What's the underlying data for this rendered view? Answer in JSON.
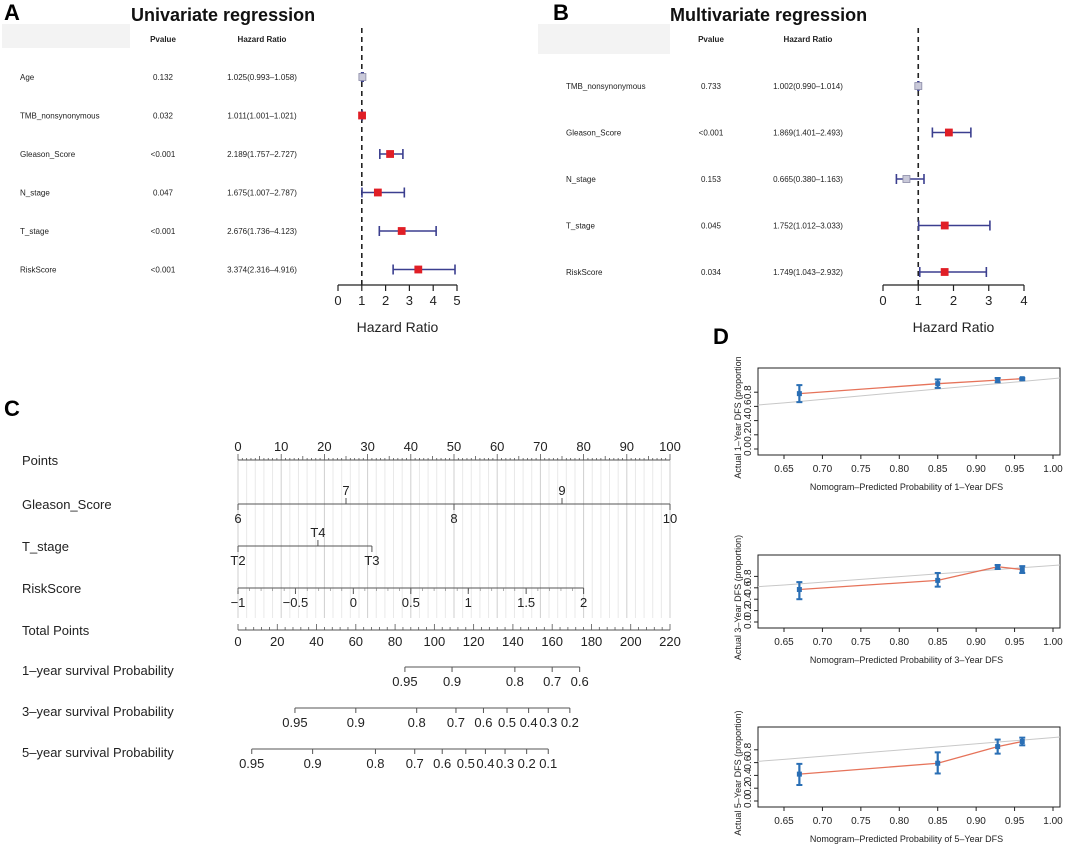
{
  "panels": {
    "A": {
      "letter": "A",
      "title": "Univariate regression"
    },
    "B": {
      "letter": "B",
      "title": "Multivariate regression"
    },
    "C": {
      "letter": "C"
    },
    "D": {
      "letter": "D"
    }
  },
  "chart_data": [
    {
      "id": "forest_univariate",
      "type": "forest",
      "title": "Univariate regression",
      "col_pvalue": "Pvalue",
      "col_hr": "Hazard Ratio",
      "xlabel": "Hazard Ratio",
      "xlim": [
        0,
        5
      ],
      "xticks": [
        "0",
        "1",
        "2",
        "3",
        "4",
        "5"
      ],
      "rows": [
        {
          "label": "Age",
          "pvalue": "0.132",
          "hr_text": "1.025(0.993–1.058)",
          "hr": 1.025,
          "lo": 0.993,
          "hi": 1.058,
          "sig": false
        },
        {
          "label": "TMB_nonsynonymous",
          "pvalue": "0.032",
          "hr_text": "1.011(1.001–1.021)",
          "hr": 1.011,
          "lo": 1.001,
          "hi": 1.021,
          "sig": true
        },
        {
          "label": "Gleason_Score",
          "pvalue": "<0.001",
          "hr_text": "2.189(1.757–2.727)",
          "hr": 2.189,
          "lo": 1.757,
          "hi": 2.727,
          "sig": true
        },
        {
          "label": "N_stage",
          "pvalue": "0.047",
          "hr_text": "1.675(1.007–2.787)",
          "hr": 1.675,
          "lo": 1.007,
          "hi": 2.787,
          "sig": true
        },
        {
          "label": "T_stage",
          "pvalue": "<0.001",
          "hr_text": "2.676(1.736–4.123)",
          "hr": 2.676,
          "lo": 1.736,
          "hi": 4.123,
          "sig": true
        },
        {
          "label": "RiskScore",
          "pvalue": "<0.001",
          "hr_text": "3.374(2.316–4.916)",
          "hr": 3.374,
          "lo": 2.316,
          "hi": 4.916,
          "sig": true
        }
      ]
    },
    {
      "id": "forest_multivariate",
      "type": "forest",
      "title": "Multivariate regression",
      "col_pvalue": "Pvalue",
      "col_hr": "Hazard Ratio",
      "xlabel": "Hazard Ratio",
      "xlim": [
        0,
        4
      ],
      "xticks": [
        "0",
        "1",
        "2",
        "3",
        "4"
      ],
      "rows": [
        {
          "label": "TMB_nonsynonymous",
          "pvalue": "0.733",
          "hr_text": "1.002(0.990–1.014)",
          "hr": 1.002,
          "lo": 0.99,
          "hi": 1.014,
          "sig": false
        },
        {
          "label": "Gleason_Score",
          "pvalue": "<0.001",
          "hr_text": "1.869(1.401–2.493)",
          "hr": 1.869,
          "lo": 1.401,
          "hi": 2.493,
          "sig": true
        },
        {
          "label": "N_stage",
          "pvalue": "0.153",
          "hr_text": "0.665(0.380–1.163)",
          "hr": 0.665,
          "lo": 0.38,
          "hi": 1.163,
          "sig": false
        },
        {
          "label": "T_stage",
          "pvalue": "0.045",
          "hr_text": "1.752(1.012–3.033)",
          "hr": 1.752,
          "lo": 1.012,
          "hi": 3.033,
          "sig": true
        },
        {
          "label": "RiskScore",
          "pvalue": "0.034",
          "hr_text": "1.749(1.043–2.932)",
          "hr": 1.749,
          "lo": 1.043,
          "hi": 2.932,
          "sig": true
        }
      ]
    },
    {
      "id": "nomogram",
      "type": "nomogram",
      "points_scale": {
        "min": 0,
        "max": 100
      },
      "rows": [
        {
          "label": "Points",
          "kind": "axis",
          "range": [
            0,
            100
          ],
          "ticks": [
            {
              "p": 0,
              "t": "0"
            },
            {
              "p": 10,
              "t": "10"
            },
            {
              "p": 20,
              "t": "20"
            },
            {
              "p": 30,
              "t": "30"
            },
            {
              "p": 40,
              "t": "40"
            },
            {
              "p": 50,
              "t": "50"
            },
            {
              "p": 60,
              "t": "60"
            },
            {
              "p": 70,
              "t": "70"
            },
            {
              "p": 80,
              "t": "80"
            },
            {
              "p": 90,
              "t": "90"
            },
            {
              "p": 100,
              "t": "100"
            }
          ]
        },
        {
          "label": "Gleason_Score",
          "kind": "scale",
          "range": [
            0,
            100
          ],
          "ticks": [
            {
              "p": 0,
              "t": "6",
              "pos": "below"
            },
            {
              "p": 25,
              "t": "7",
              "pos": "above"
            },
            {
              "p": 50,
              "t": "8",
              "pos": "below"
            },
            {
              "p": 75,
              "t": "9",
              "pos": "above"
            },
            {
              "p": 100,
              "t": "10",
              "pos": "below"
            }
          ]
        },
        {
          "label": "T_stage",
          "kind": "scale",
          "range": [
            0,
            31
          ],
          "ticks": [
            {
              "p": 0,
              "t": "T2",
              "pos": "below"
            },
            {
              "p": 18.5,
              "t": "T4",
              "pos": "above"
            },
            {
              "p": 31,
              "t": "T3",
              "pos": "below"
            }
          ]
        },
        {
          "label": "RiskScore",
          "kind": "scale",
          "range": [
            0,
            80
          ],
          "ticks": [
            {
              "p": 0,
              "t": "−1",
              "pos": "below"
            },
            {
              "p": 13.3,
              "t": "−0.5",
              "pos": "below"
            },
            {
              "p": 26.7,
              "t": "0",
              "pos": "below"
            },
            {
              "p": 40,
              "t": "0.5",
              "pos": "below"
            },
            {
              "p": 53.3,
              "t": "1",
              "pos": "below"
            },
            {
              "p": 66.7,
              "t": "1.5",
              "pos": "below"
            },
            {
              "p": 80,
              "t": "2",
              "pos": "below"
            }
          ]
        },
        {
          "label": "Total Points",
          "kind": "total",
          "range": [
            0,
            220
          ],
          "ticks": [
            {
              "p": 0,
              "t": "0"
            },
            {
              "p": 20,
              "t": "20"
            },
            {
              "p": 40,
              "t": "40"
            },
            {
              "p": 60,
              "t": "60"
            },
            {
              "p": 80,
              "t": "80"
            },
            {
              "p": 100,
              "t": "100"
            },
            {
              "p": 120,
              "t": "120"
            },
            {
              "p": 140,
              "t": "140"
            },
            {
              "p": 160,
              "t": "160"
            },
            {
              "p": 180,
              "t": "180"
            },
            {
              "p": 200,
              "t": "200"
            },
            {
              "p": 220,
              "t": "220"
            }
          ]
        },
        {
          "label": "1–year survival Probability",
          "kind": "prob",
          "ticks": [
            {
              "p": 85,
              "t": "0.95"
            },
            {
              "p": 109,
              "t": "0.9"
            },
            {
              "p": 141,
              "t": "0.8"
            },
            {
              "p": 160,
              "t": "0.7"
            },
            {
              "p": 174,
              "t": "0.6"
            }
          ]
        },
        {
          "label": "3–year survival Probability",
          "kind": "prob",
          "ticks": [
            {
              "p": 29,
              "t": "0.95"
            },
            {
              "p": 60,
              "t": "0.9"
            },
            {
              "p": 91,
              "t": "0.8"
            },
            {
              "p": 111,
              "t": "0.7"
            },
            {
              "p": 125,
              "t": "0.6"
            },
            {
              "p": 137,
              "t": "0.5"
            },
            {
              "p": 148,
              "t": "0.4"
            },
            {
              "p": 158,
              "t": "0.3"
            },
            {
              "p": 169,
              "t": "0.2"
            }
          ]
        },
        {
          "label": "5–year survival Probability",
          "kind": "prob",
          "ticks": [
            {
              "p": 7,
              "t": "0.95"
            },
            {
              "p": 38,
              "t": "0.9"
            },
            {
              "p": 70,
              "t": "0.8"
            },
            {
              "p": 90,
              "t": "0.7"
            },
            {
              "p": 104,
              "t": "0.6"
            },
            {
              "p": 116,
              "t": "0.5"
            },
            {
              "p": 126,
              "t": "0.4"
            },
            {
              "p": 136,
              "t": "0.3"
            },
            {
              "p": 147,
              "t": "0.2"
            },
            {
              "p": 158,
              "t": "0.1"
            }
          ]
        }
      ]
    },
    {
      "id": "calibration",
      "type": "line",
      "xlim": [
        0.65,
        1.0
      ],
      "ylim": [
        0,
        1
      ],
      "xticks": [
        "0.65",
        "0.70",
        "0.75",
        "0.80",
        "0.85",
        "0.90",
        "0.95",
        "1.00"
      ],
      "yticks": [
        "0.0",
        "0.2",
        "0.4",
        "0.6",
        "0.8"
      ],
      "plots": [
        {
          "ylabel": "Actual 1–Year DFS (proportion",
          "xlabel": "Nomogram–Predicted Probability of 1–Year DFS",
          "points": [
            {
              "x": 0.67,
              "y": 0.78,
              "lo": 0.66,
              "hi": 0.9
            },
            {
              "x": 0.85,
              "y": 0.92,
              "lo": 0.86,
              "hi": 0.98
            },
            {
              "x": 0.928,
              "y": 0.97,
              "lo": 0.94,
              "hi": 1.0
            },
            {
              "x": 0.96,
              "y": 0.99,
              "lo": 0.97,
              "hi": 1.0
            }
          ]
        },
        {
          "ylabel": "Actual 3–Year DFS (proportion)",
          "xlabel": "Nomogram–Predicted Probability of 3–Year DFS",
          "points": [
            {
              "x": 0.67,
              "y": 0.57,
              "lo": 0.4,
              "hi": 0.7
            },
            {
              "x": 0.85,
              "y": 0.73,
              "lo": 0.62,
              "hi": 0.86
            },
            {
              "x": 0.928,
              "y": 0.97,
              "lo": 0.93,
              "hi": 1.0
            },
            {
              "x": 0.96,
              "y": 0.92,
              "lo": 0.86,
              "hi": 0.98
            }
          ]
        },
        {
          "ylabel": "Actual 5–Year DFS (proportion)",
          "xlabel": "Nomogram–Predicted Probability of 5–Year DFS",
          "points": [
            {
              "x": 0.67,
              "y": 0.42,
              "lo": 0.25,
              "hi": 0.58
            },
            {
              "x": 0.85,
              "y": 0.59,
              "lo": 0.43,
              "hi": 0.76
            },
            {
              "x": 0.928,
              "y": 0.85,
              "lo": 0.74,
              "hi": 0.96
            },
            {
              "x": 0.96,
              "y": 0.93,
              "lo": 0.87,
              "hi": 0.99
            }
          ]
        }
      ]
    }
  ]
}
